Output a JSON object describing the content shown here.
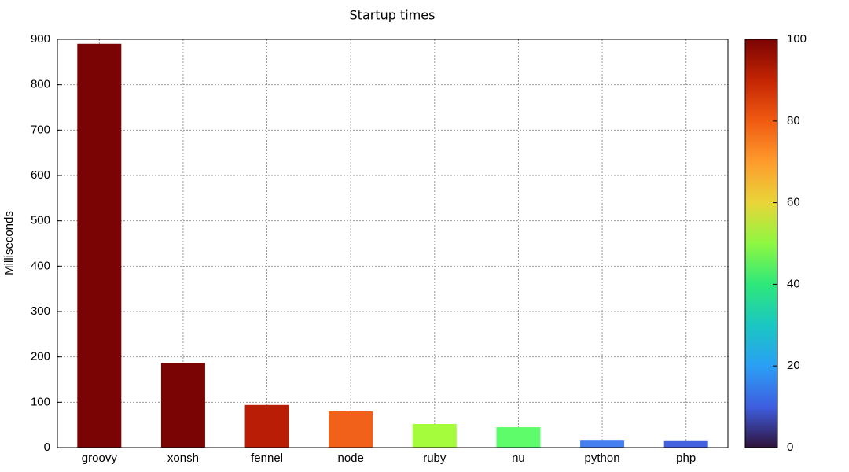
{
  "chart_data": {
    "type": "bar",
    "title": "Startup times",
    "y_label": "Milliseconds",
    "categories": [
      "groovy",
      "xonsh",
      "fennel",
      "node",
      "ruby",
      "nu",
      "python",
      "php"
    ],
    "values": [
      890,
      187,
      94,
      80,
      52,
      45,
      17,
      16
    ],
    "colors": [
      "#7a0403",
      "#7a0403",
      "#b91d05",
      "#f26119",
      "#a4fc3c",
      "#5dfc6a",
      "#4680f0",
      "#4462e0"
    ],
    "ylim": [
      0,
      900
    ],
    "yticks": [
      0,
      100,
      200,
      300,
      400,
      500,
      600,
      700,
      800,
      900
    ],
    "grid": true,
    "colorbar": {
      "lim": [
        0,
        100
      ],
      "ticks": [
        0,
        20,
        40,
        60,
        80,
        100
      ],
      "colors": [
        "#30123b",
        "#3e5ee0",
        "#2b9ff5",
        "#1ac7c2",
        "#2ee87a",
        "#8ef742",
        "#e9d539",
        "#fe9b2d",
        "#f05b12",
        "#c42503",
        "#7a0403"
      ]
    }
  }
}
